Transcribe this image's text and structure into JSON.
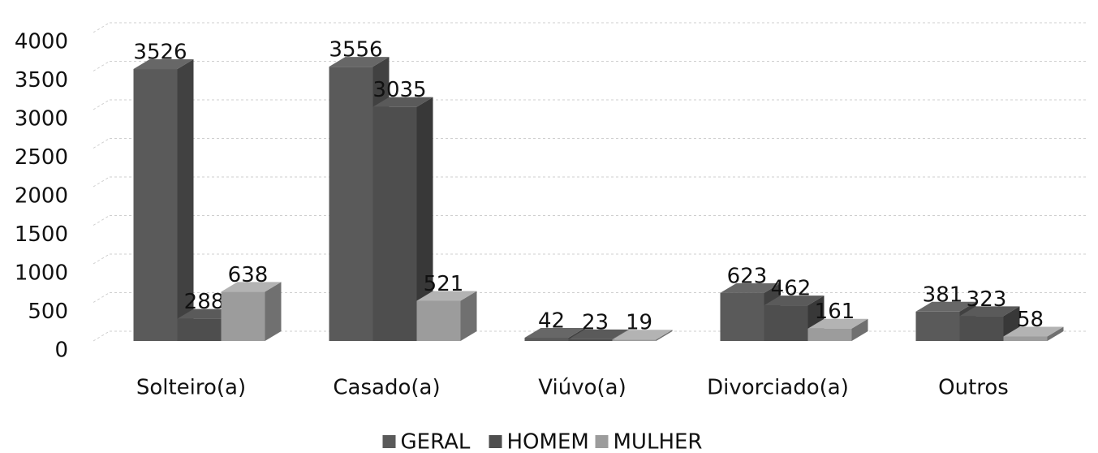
{
  "chart_data": {
    "type": "bar3d",
    "categories": [
      "Solteiro(a)",
      "Casado(a)",
      "Viúvo(a)",
      "Divorciado(a)",
      "Outros"
    ],
    "series": [
      {
        "name": "GERAL",
        "color": "#5a5a5a",
        "values": [
          3526,
          3556,
          42,
          623,
          381
        ]
      },
      {
        "name": "HOMEM",
        "color": "#4e4e4e",
        "values": [
          288,
          3035,
          23,
          462,
          323
        ]
      },
      {
        "name": "MULHER",
        "color": "#9c9c9c",
        "values": [
          638,
          521,
          19,
          161,
          58
        ]
      }
    ],
    "ylim": [
      0,
      4000
    ],
    "yticks": [
      0,
      500,
      1000,
      1500,
      2000,
      2500,
      3000,
      3500,
      4000
    ],
    "grid": true,
    "legend": "bottom"
  }
}
